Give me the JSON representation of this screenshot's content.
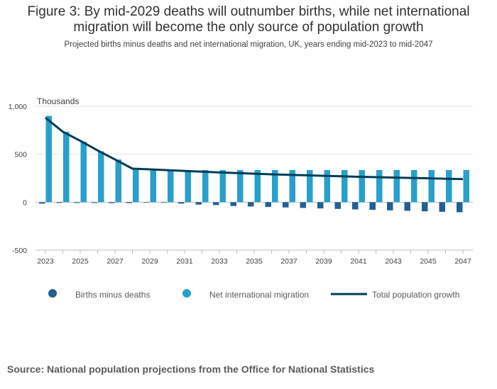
{
  "header": {
    "title_line1": "Figure 3: By mid-2029 deaths will outnumber births, while net international",
    "title_line2": "migration will become the only source of population growth",
    "subtitle": "Projected births minus deaths and net international migration, UK, years ending mid-2023 to mid-2047"
  },
  "footer": {
    "source": "Source: National population projections from the Office for National Statistics"
  },
  "colors": {
    "births_minus_deaths": "#206095",
    "net_migration": "#27a0cc",
    "total_growth": "#003c57",
    "grid": "#e0e0e0"
  },
  "chart_data": {
    "type": "bar",
    "unit_label": "Thousands",
    "x": [
      2023,
      2024,
      2025,
      2026,
      2027,
      2028,
      2029,
      2030,
      2031,
      2032,
      2033,
      2034,
      2035,
      2036,
      2037,
      2038,
      2039,
      2040,
      2041,
      2042,
      2043,
      2044,
      2045,
      2046,
      2047
    ],
    "x_tick_labels": [
      "2023",
      "2025",
      "2027",
      "2029",
      "2031",
      "2033",
      "2035",
      "2037",
      "2039",
      "2041",
      "2043",
      "2045",
      "2047"
    ],
    "y_tick_labels": [
      "1,000",
      "500",
      "0",
      "-500"
    ],
    "ylim": [
      -500,
      1000
    ],
    "y_ticks": [
      1000,
      500,
      0,
      -500
    ],
    "grid": true,
    "legend_position": "bottom",
    "series": [
      {
        "name": "Births minus deaths",
        "type": "bar",
        "values": [
          -15,
          -8,
          -8,
          -8,
          -10,
          -10,
          -3,
          -5,
          -15,
          -25,
          -30,
          -40,
          -45,
          -50,
          -55,
          -60,
          -65,
          -70,
          -75,
          -80,
          -85,
          -90,
          -95,
          -100,
          -105
        ]
      },
      {
        "name": "Net international migration",
        "type": "bar",
        "values": [
          900,
          735,
          630,
          530,
          445,
          350,
          345,
          340,
          335,
          335,
          335,
          335,
          335,
          335,
          335,
          335,
          335,
          335,
          335,
          335,
          335,
          335,
          335,
          335,
          335
        ]
      },
      {
        "name": "Total population growth",
        "type": "line",
        "values": [
          880,
          735,
          640,
          540,
          445,
          350,
          342,
          334,
          326,
          318,
          310,
          303,
          297,
          291,
          285,
          280,
          275,
          270,
          265,
          261,
          257,
          253,
          249,
          245,
          241
        ]
      }
    ]
  }
}
